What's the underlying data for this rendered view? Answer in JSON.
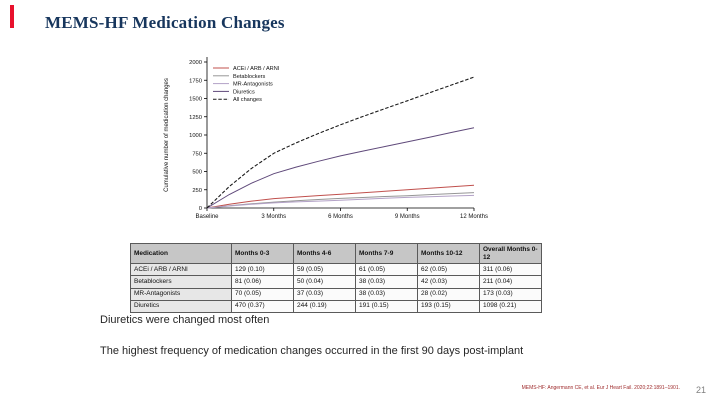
{
  "slide": {
    "title": "MEMS-HF Medication Changes",
    "accent_color": "#e8112d",
    "title_color": "#17365d",
    "bullets": [
      "Diuretics were changed most often",
      "The highest frequency of medication changes occurred in the first 90 days post-implant"
    ],
    "footnote": "MEMS-HF: Angermann CE, et al. Eur J Heart Fail. 2020;22:1891–1901.",
    "page_number": "21"
  },
  "chart_data": {
    "type": "line",
    "title": "",
    "xlabel": "",
    "ylabel": "Cumulative number of medication changes",
    "ylim": [
      0,
      2000
    ],
    "yticks": [
      0,
      250,
      500,
      750,
      1000,
      1250,
      1500,
      1750,
      2000
    ],
    "x": [
      0,
      1,
      2,
      3,
      4,
      5,
      6,
      7,
      8,
      9,
      10,
      11,
      12
    ],
    "xtick_positions": [
      0,
      3,
      6,
      9,
      12
    ],
    "xtick_labels": [
      "Baseline",
      "3 Months",
      "6 Months",
      "9 Months",
      "12 Months"
    ],
    "legend_position": "top-left",
    "grid": false,
    "series": [
      {
        "name": "ACEi / ARB / ARNI",
        "color": "#c0504d",
        "dash": false,
        "values": [
          0,
          50,
          95,
          129,
          150,
          170,
          188,
          209,
          229,
          249,
          270,
          291,
          311
        ]
      },
      {
        "name": "Betablockers",
        "color": "#969696",
        "dash": false,
        "values": [
          0,
          32,
          58,
          81,
          99,
          116,
          131,
          144,
          157,
          169,
          183,
          197,
          211
        ]
      },
      {
        "name": "MR-Antagonists",
        "color": "#b3a2c7",
        "dash": false,
        "values": [
          0,
          28,
          50,
          70,
          83,
          95,
          107,
          120,
          133,
          145,
          155,
          164,
          173
        ]
      },
      {
        "name": "Diuretics",
        "color": "#5f497a",
        "dash": false,
        "values": [
          0,
          185,
          340,
          470,
          560,
          640,
          714,
          780,
          843,
          905,
          970,
          1035,
          1098
        ]
      },
      {
        "name": "All changes",
        "color": "#1a1a1a",
        "dash": true,
        "values": [
          0,
          295,
          543,
          750,
          892,
          1021,
          1140,
          1253,
          1362,
          1468,
          1578,
          1686,
          1793
        ]
      }
    ]
  },
  "table": {
    "headers": [
      "Medication",
      "Months 0-3",
      "Months 4-6",
      "Months 7-9",
      "Months 10-12",
      "Overall Months 0-12"
    ],
    "rows": [
      {
        "label": "ACEi / ARB / ARNI",
        "cells": [
          "129 (0.10)",
          "59 (0.05)",
          "61 (0.05)",
          "62 (0.05)",
          "311 (0.06)"
        ]
      },
      {
        "label": "Betablockers",
        "cells": [
          "81 (0.06)",
          "50 (0.04)",
          "38 (0.03)",
          "42 (0.03)",
          "211 (0.04)"
        ]
      },
      {
        "label": "MR-Antagonists",
        "cells": [
          "70 (0.05)",
          "37 (0.03)",
          "38 (0.03)",
          "28 (0.02)",
          "173 (0.03)"
        ]
      },
      {
        "label": "Diuretics",
        "cells": [
          "470 (0.37)",
          "244 (0.19)",
          "191 (0.15)",
          "193 (0.15)",
          "1098 (0.21)"
        ]
      }
    ]
  }
}
